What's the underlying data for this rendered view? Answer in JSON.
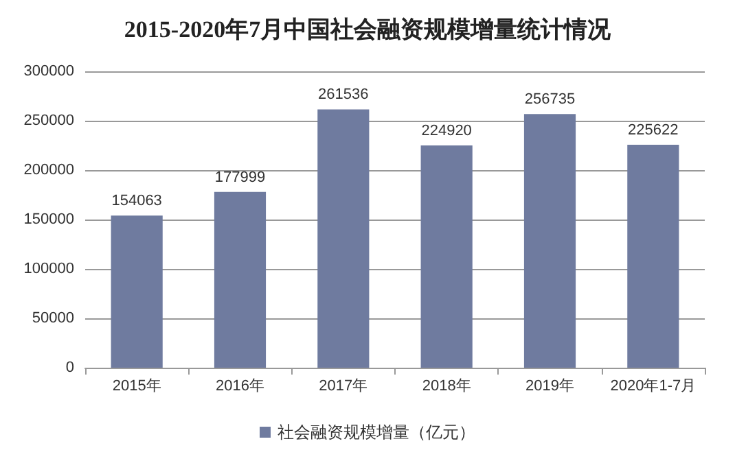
{
  "chart_data": {
    "type": "bar",
    "title": "2015-2020年7月中国社会融资规模增量统计情况",
    "categories": [
      "2015年",
      "2016年",
      "2017年",
      "2018年",
      "2019年",
      "2020年1-7月"
    ],
    "series": [
      {
        "name": "社会融资规模增量（亿元）",
        "color": "#6f7b9f",
        "values": [
          154063,
          177999,
          261536,
          224920,
          256735,
          225622
        ],
        "value_labels": [
          "154063",
          "177999",
          "261536",
          "224920",
          "256735",
          "225622"
        ]
      }
    ],
    "ylim": [
      0,
      300000
    ],
    "yticks": [
      0,
      50000,
      100000,
      150000,
      200000,
      250000,
      300000
    ],
    "grid": "y",
    "legend": "bottom"
  }
}
